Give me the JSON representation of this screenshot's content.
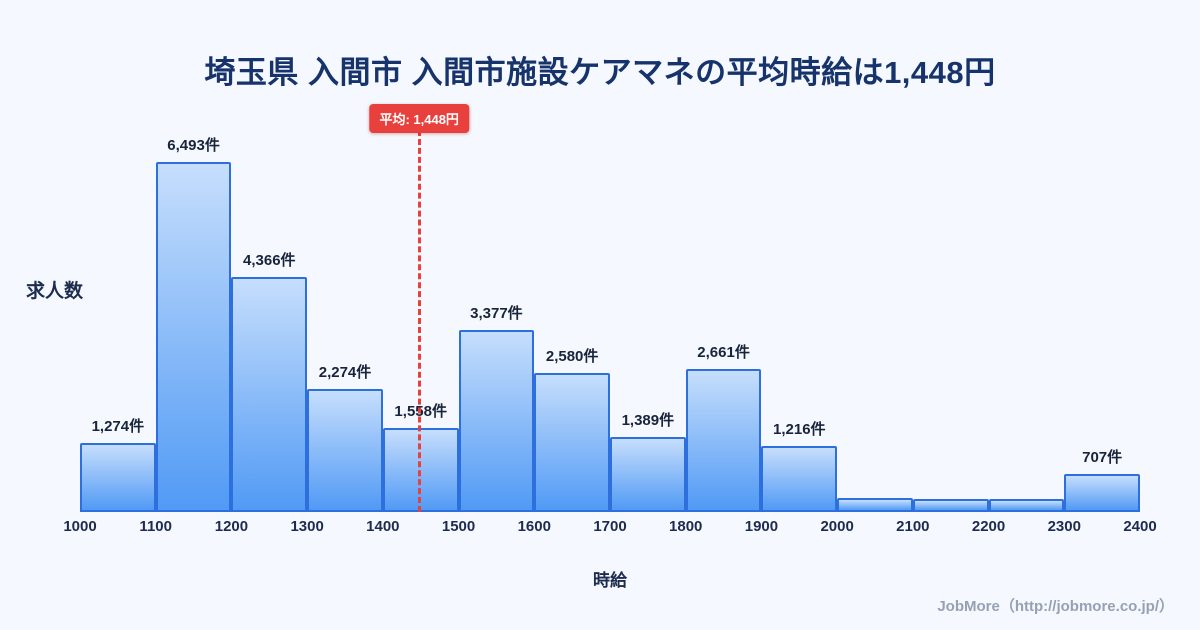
{
  "title": "埼玉県 入間市 入間市施設ケアマネの平均時給は1,448円",
  "footer": {
    "credit": "JobMore（http://jobmore.co.jp/）"
  },
  "chart_data": {
    "type": "bar",
    "title": "埼玉県 入間市 入間市施設ケアマネの平均時給は1,448円",
    "xlabel": "時給",
    "ylabel": "求人数",
    "x_range": [
      1000,
      2400
    ],
    "bin_width": 100,
    "x_ticks": [
      "1000",
      "1100",
      "1200",
      "1300",
      "1400",
      "1500",
      "1600",
      "1700",
      "1800",
      "1900",
      "2000",
      "2100",
      "2200",
      "2300",
      "2400"
    ],
    "categories": [
      "1000-1100",
      "1100-1200",
      "1200-1300",
      "1300-1400",
      "1400-1500",
      "1500-1600",
      "1600-1700",
      "1700-1800",
      "1800-1900",
      "1900-2000",
      "2000-2100",
      "2100-2200",
      "2200-2300",
      "2300-2400"
    ],
    "values": [
      1274,
      6493,
      4366,
      2274,
      1558,
      3377,
      2580,
      1389,
      2661,
      1216,
      260,
      240,
      250,
      707
    ],
    "bar_labels": [
      "1,274件",
      "6,493件",
      "4,366件",
      "2,274件",
      "1,558件",
      "3,377件",
      "2,580件",
      "1,389件",
      "2,661件",
      "1,216件",
      "",
      "",
      "",
      "707件"
    ],
    "average_line": {
      "value": 1448,
      "label": "平均: 1,448円"
    },
    "ylim": [
      0,
      7000
    ],
    "grid": false,
    "legend": false,
    "colors": {
      "background": "#f5f8fe",
      "bar_top": "#c6defc",
      "bar_bottom": "#519af5",
      "bar_border": "#2d6fdc",
      "average": "#e8413d",
      "title": "#17336b"
    }
  }
}
